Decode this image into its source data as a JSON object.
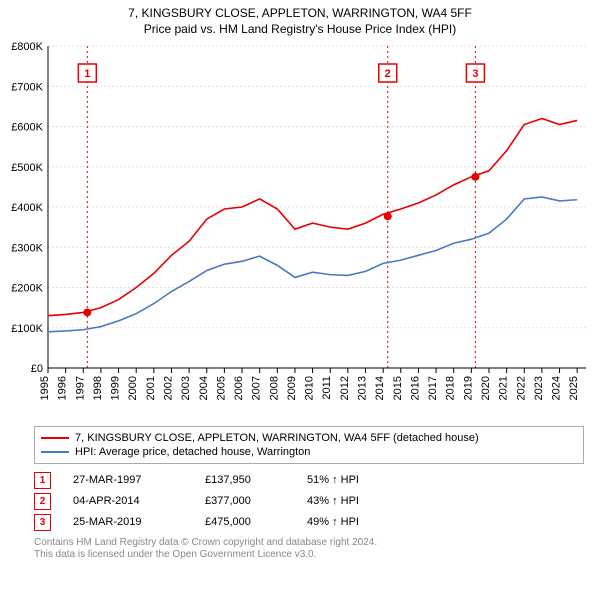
{
  "title_line1": "7, KINGSBURY CLOSE, APPLETON, WARRINGTON, WA4 5FF",
  "title_line2": "Price paid vs. HM Land Registry's House Price Index (HPI)",
  "chart": {
    "type": "line",
    "background_color": "#ffffff",
    "grid_color": "#e0e0e0",
    "axis_color": "#000000",
    "label_fontsize": 11,
    "x_years": [
      "1995",
      "1996",
      "1997",
      "1998",
      "1999",
      "2000",
      "2001",
      "2002",
      "2003",
      "2004",
      "2005",
      "2006",
      "2007",
      "2008",
      "2009",
      "2010",
      "2011",
      "2012",
      "2013",
      "2014",
      "2015",
      "2016",
      "2017",
      "2018",
      "2019",
      "2020",
      "2021",
      "2022",
      "2023",
      "2024",
      "2025"
    ],
    "xlim_year": [
      1995,
      2025.5
    ],
    "ylim": [
      0,
      800000
    ],
    "ytick_step": 100000,
    "yticks": [
      "£0",
      "£100K",
      "£200K",
      "£300K",
      "£400K",
      "£500K",
      "£600K",
      "£700K",
      "£800K"
    ],
    "series": [
      {
        "name": "7, KINGSBURY CLOSE, APPLETON, WARRINGTON, WA4 5FF (detached house)",
        "color": "#e60000",
        "line_width": 1.6,
        "points_year": [
          1995,
          1996,
          1997,
          1998,
          1999,
          2000,
          2001,
          2002,
          2003,
          2004,
          2005,
          2006,
          2007,
          2008,
          2009,
          2010,
          2011,
          2012,
          2013,
          2014,
          2015,
          2016,
          2017,
          2018,
          2019,
          2020,
          2021,
          2022,
          2023,
          2024,
          2025
        ],
        "points_value": [
          130000,
          133000,
          137950,
          150000,
          170000,
          200000,
          235000,
          280000,
          315000,
          370000,
          395000,
          400000,
          420000,
          395000,
          345000,
          360000,
          350000,
          345000,
          360000,
          382000,
          395000,
          410000,
          430000,
          455000,
          475000,
          490000,
          540000,
          605000,
          620000,
          605000,
          615000
        ]
      },
      {
        "name": "HPI: Average price, detached house, Warrington",
        "color": "#4a78c4",
        "line_width": 1.6,
        "points_year": [
          1995,
          1996,
          1997,
          1998,
          1999,
          2000,
          2001,
          2002,
          2003,
          2004,
          2005,
          2006,
          2007,
          2008,
          2009,
          2010,
          2011,
          2012,
          2013,
          2014,
          2015,
          2016,
          2017,
          2018,
          2019,
          2020,
          2021,
          2022,
          2023,
          2024,
          2025
        ],
        "points_value": [
          90000,
          92000,
          95000,
          103000,
          117000,
          135000,
          160000,
          190000,
          215000,
          242000,
          258000,
          265000,
          278000,
          255000,
          225000,
          238000,
          232000,
          230000,
          240000,
          260000,
          268000,
          280000,
          292000,
          310000,
          320000,
          335000,
          370000,
          420000,
          425000,
          415000,
          418000
        ]
      }
    ],
    "event_markers": [
      {
        "label": "1",
        "year": 1997.23,
        "color": "#e60000",
        "date": "27-MAR-1997",
        "price": "£137,950",
        "hpi": "51% ↑ HPI"
      },
      {
        "label": "2",
        "year": 2014.26,
        "color": "#e60000",
        "date": "04-APR-2014",
        "price": "£377,000",
        "hpi": "43% ↑ HPI"
      },
      {
        "label": "3",
        "year": 2019.23,
        "color": "#e60000",
        "date": "25-MAR-2019",
        "price": "£475,000",
        "hpi": "49% ↑ HPI"
      }
    ],
    "sale_points": [
      {
        "year": 1997.23,
        "value": 137950,
        "color": "#e60000"
      },
      {
        "year": 2014.26,
        "value": 377000,
        "color": "#e60000"
      },
      {
        "year": 2019.23,
        "value": 475000,
        "color": "#e60000"
      }
    ]
  },
  "footer_line1": "Contains HM Land Registry data © Crown copyright and database right 2024.",
  "footer_line2": "This data is licensed under the Open Government Licence v3.0."
}
